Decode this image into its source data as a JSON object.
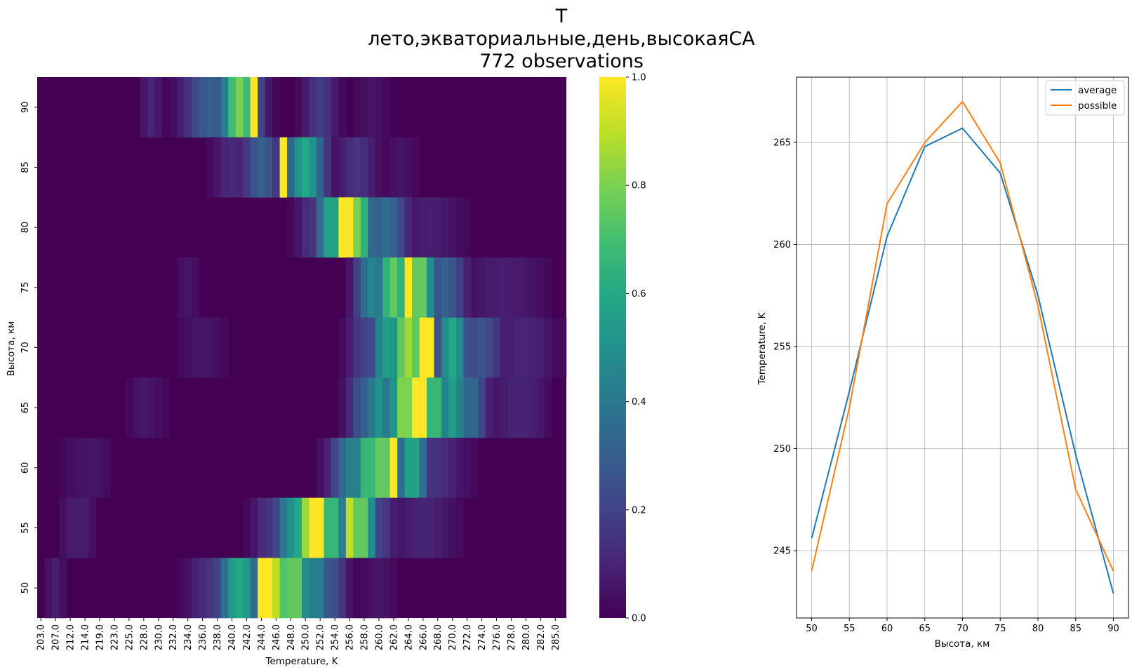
{
  "title": {
    "line1": "T",
    "line2": "лето,экваториальные,день,высокаяСА",
    "line3": "772 observations"
  },
  "chart_data": [
    {
      "type": "heatmap",
      "xlabel": "Temperature, K",
      "ylabel": "Высота, км",
      "x_tick_labels": [
        "203.0",
        "207.0",
        "212.0",
        "214.0",
        "219.0",
        "223.0",
        "225.0",
        "228.0",
        "230.0",
        "232.0",
        "234.0",
        "236.0",
        "238.0",
        "240.0",
        "242.0",
        "244.0",
        "246.0",
        "248.0",
        "250.0",
        "252.0",
        "254.0",
        "256.0",
        "258.0",
        "260.0",
        "262.0",
        "264.0",
        "266.0",
        "268.0",
        "270.0",
        "272.0",
        "274.0",
        "276.0",
        "278.0",
        "280.0",
        "282.0",
        "285.0"
      ],
      "y_tick_labels": [
        "90",
        "85",
        "80",
        "75",
        "70",
        "65",
        "60",
        "55",
        "50"
      ],
      "colorbar": {
        "colormap": "viridis",
        "range": [
          0,
          1
        ],
        "tick_labels": [
          "0.0",
          "0.2",
          "0.4",
          "0.6",
          "0.8",
          "1.0"
        ]
      },
      "rows": [
        {
          "altitude": 90,
          "peaks": [
            [
              243.0,
              0.0,
              1.0
            ],
            [
              241.0,
              1.8,
              0.8
            ],
            [
              237.0,
              2.5,
              0.3
            ],
            [
              252.0,
              1.5,
              0.18
            ],
            [
              229.0,
              1.0,
              0.1
            ],
            [
              259.0,
              1.5,
              0.05
            ]
          ]
        },
        {
          "altitude": 85,
          "peaks": [
            [
              247.0,
              0.0,
              1.0
            ],
            [
              250.0,
              1.8,
              0.6
            ],
            [
              244.0,
              1.8,
              0.3
            ],
            [
              240.0,
              1.8,
              0.12
            ],
            [
              257.0,
              1.8,
              0.15
            ],
            [
              263.0,
              1.5,
              0.05
            ]
          ]
        },
        {
          "altitude": 80,
          "peaks": [
            [
              255.5,
              0.0,
              1.0
            ],
            [
              257.0,
              1.5,
              0.8
            ],
            [
              253.5,
              1.5,
              0.6
            ],
            [
              261.0,
              2.0,
              0.35
            ],
            [
              251.0,
              1.5,
              0.15
            ],
            [
              267.0,
              3.0,
              0.08
            ]
          ]
        },
        {
          "altitude": 75,
          "peaks": [
            [
              264.0,
              0.0,
              1.0
            ],
            [
              262.0,
              1.8,
              0.75
            ],
            [
              265.5,
              1.5,
              0.8
            ],
            [
              259.0,
              1.5,
              0.45
            ],
            [
              269.0,
              2.0,
              0.3
            ],
            [
              277.0,
              4.0,
              0.08
            ],
            [
              234.0,
              1.0,
              0.06
            ]
          ]
        },
        {
          "altitude": 70,
          "peaks": [
            [
              266.5,
              0.0,
              1.0
            ],
            [
              264.0,
              2.0,
              0.85
            ],
            [
              270.0,
              1.5,
              0.6
            ],
            [
              261.0,
              1.5,
              0.55
            ],
            [
              258.0,
              1.5,
              0.2
            ],
            [
              274.0,
              2.0,
              0.25
            ],
            [
              280.0,
              3.0,
              0.1
            ],
            [
              236.0,
              2.0,
              0.06
            ]
          ]
        },
        {
          "altitude": 65,
          "peaks": [
            [
              265.5,
              0.0,
              1.0
            ],
            [
              263.5,
              1.5,
              0.85
            ],
            [
              267.5,
              1.5,
              0.7
            ],
            [
              260.0,
              1.5,
              0.5
            ],
            [
              270.0,
              1.5,
              0.55
            ],
            [
              272.5,
              1.5,
              0.35
            ],
            [
              258.0,
              1.5,
              0.3
            ],
            [
              279.0,
              3.0,
              0.1
            ],
            [
              228.0,
              2.0,
              0.06
            ]
          ]
        },
        {
          "altitude": 60,
          "peaks": [
            [
              262.0,
              0.0,
              1.0
            ],
            [
              260.5,
              1.5,
              0.8
            ],
            [
              258.5,
              1.5,
              0.7
            ],
            [
              256.5,
              2.0,
              0.45
            ],
            [
              264.5,
              1.5,
              0.6
            ],
            [
              267.0,
              3.0,
              0.15
            ],
            [
              271.0,
              1.5,
              0.05
            ],
            [
              216.0,
              4.0,
              0.06
            ]
          ]
        },
        {
          "altitude": 55,
          "peaks": [
            [
              251.5,
              0.0,
              1.0
            ],
            [
              250.0,
              1.2,
              0.85
            ],
            [
              256.0,
              0.0,
              0.9
            ],
            [
              257.5,
              1.5,
              0.8
            ],
            [
              253.5,
              1.5,
              0.7
            ],
            [
              248.0,
              1.5,
              0.5
            ],
            [
              245.0,
              1.5,
              0.15
            ],
            [
              260.0,
              1.5,
              0.2
            ],
            [
              266.0,
              3.0,
              0.1
            ],
            [
              213.0,
              3.0,
              0.08
            ]
          ]
        },
        {
          "altitude": 50,
          "peaks": [
            [
              244.5,
              0.0,
              1.0
            ],
            [
              246.0,
              1.5,
              0.9
            ],
            [
              248.5,
              1.5,
              0.8
            ],
            [
              241.0,
              2.0,
              0.6
            ],
            [
              251.5,
              1.5,
              0.45
            ],
            [
              253.5,
              1.5,
              0.25
            ],
            [
              237.0,
              2.0,
              0.15
            ],
            [
              207.0,
              2.0,
              0.08
            ],
            [
              260.0,
              1.5,
              0.06
            ]
          ]
        }
      ]
    },
    {
      "type": "line",
      "xlabel": "Высота, км",
      "ylabel": "Temperature, K",
      "x": [
        50,
        55,
        60,
        65,
        70,
        75,
        80,
        85,
        90
      ],
      "xlim": [
        48,
        92
      ],
      "ylim": [
        241.7,
        268.2
      ],
      "x_ticks": [
        50,
        55,
        60,
        65,
        70,
        75,
        80,
        85,
        90
      ],
      "y_ticks": [
        245,
        250,
        255,
        260,
        265
      ],
      "grid": true,
      "legend_position": "top-right",
      "series": [
        {
          "name": "average",
          "color": "#1f77b4",
          "values": [
            245.6,
            252.8,
            260.4,
            264.8,
            265.7,
            263.5,
            257.5,
            249.7,
            242.9
          ]
        },
        {
          "name": "possible",
          "color": "#ff7f0e",
          "values": [
            244.0,
            252.0,
            262.0,
            265.0,
            267.0,
            264.0,
            257.0,
            248.0,
            244.0
          ]
        }
      ]
    }
  ]
}
